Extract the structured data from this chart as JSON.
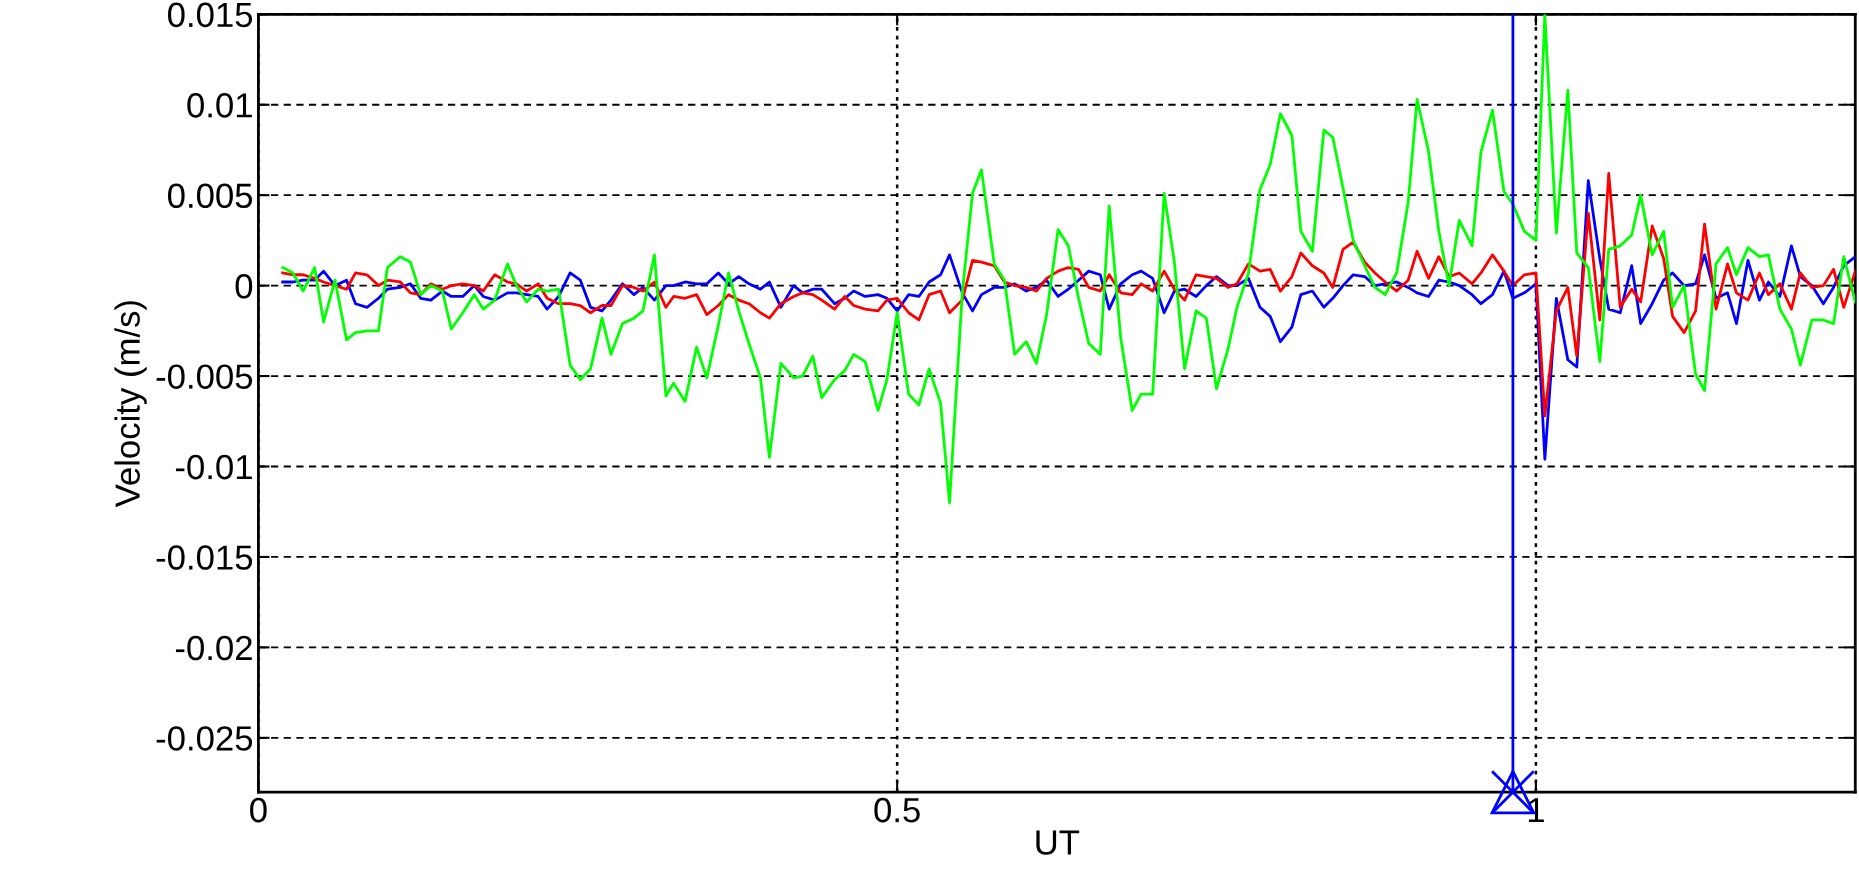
{
  "chart_data": {
    "type": "line",
    "xlabel": "UT",
    "ylabel": "Velocity (m/s)",
    "x": [
      0.019,
      0.027,
      0.035,
      0.044,
      0.051,
      0.06,
      0.069,
      0.076,
      0.085,
      0.094,
      0.101,
      0.111,
      0.119,
      0.127,
      0.135,
      0.144,
      0.151,
      0.16,
      0.169,
      0.176,
      0.185,
      0.195,
      0.202,
      0.21,
      0.219,
      0.226,
      0.235,
      0.244,
      0.252,
      0.26,
      0.269,
      0.276,
      0.285,
      0.294,
      0.301,
      0.31,
      0.319,
      0.325,
      0.334,
      0.343,
      0.351,
      0.36,
      0.368,
      0.376,
      0.384,
      0.393,
      0.4,
      0.409,
      0.419,
      0.426,
      0.434,
      0.441,
      0.451,
      0.459,
      0.466,
      0.475,
      0.485,
      0.492,
      0.5,
      0.509,
      0.517,
      0.525,
      0.534,
      0.541,
      0.551,
      0.559,
      0.566,
      0.576,
      0.584,
      0.592,
      0.601,
      0.609,
      0.617,
      0.626,
      0.634,
      0.642,
      0.65,
      0.659,
      0.666,
      0.675,
      0.684,
      0.691,
      0.7,
      0.709,
      0.717,
      0.725,
      0.734,
      0.742,
      0.75,
      0.759,
      0.766,
      0.775,
      0.784,
      0.792,
      0.8,
      0.809,
      0.816,
      0.825,
      0.834,
      0.841,
      0.849,
      0.857,
      0.866,
      0.874,
      0.882,
      0.891,
      0.9,
      0.907,
      0.916,
      0.924,
      0.932,
      0.94,
      0.95,
      0.957,
      0.966,
      0.975,
      0.982,
      0.991,
      1.0,
      1.007,
      1.016,
      1.025,
      1.032,
      1.041,
      1.05,
      1.057,
      1.066,
      1.075,
      1.082,
      1.091,
      1.1,
      1.107,
      1.116,
      1.125,
      1.132,
      1.141,
      1.15,
      1.157,
      1.166,
      1.175,
      1.182,
      1.191,
      1.2,
      1.207,
      1.216,
      1.225,
      1.233,
      1.241,
      1.25
    ],
    "series": [
      {
        "color": "#0000ff",
        "values": [
          0.0002,
          0.0002,
          0.0003,
          0.0003,
          0.0008,
          0.0,
          0.0003,
          -0.001,
          -0.0012,
          -0.0007,
          -0.0002,
          -0.0001,
          0.0001,
          -0.0007,
          -0.0008,
          -0.0003,
          -0.0006,
          -0.0006,
          0.0,
          -0.0006,
          -0.0008,
          -0.0004,
          -0.0004,
          -0.0005,
          -0.0006,
          -0.0013,
          -0.0006,
          0.0007,
          0.0003,
          -0.0012,
          -0.0014,
          -0.0008,
          0.0001,
          -0.0005,
          -0.0001,
          -0.0008,
          0.0,
          0.0,
          0.0002,
          0.0001,
          0.0001,
          0.0007,
          0.0001,
          0.0005,
          0.0001,
          -0.0002,
          0.0002,
          -0.0012,
          0.0,
          -0.0004,
          -0.0002,
          -0.0002,
          -0.001,
          -0.0007,
          -0.0003,
          -0.0006,
          -0.0005,
          -0.0007,
          -0.0014,
          -0.0005,
          -0.0006,
          0.0002,
          0.0006,
          0.0017,
          -0.0004,
          -0.0014,
          -0.0005,
          -0.0001,
          -0.0001,
          0.0001,
          -0.0003,
          -0.0001,
          0.0003,
          -0.0006,
          -0.0002,
          0.0003,
          0.0008,
          0.0006,
          -0.0013,
          0.0001,
          0.0006,
          0.0008,
          0.0004,
          -0.0015,
          -0.0003,
          -0.0002,
          -0.0006,
          0.0,
          0.0005,
          0.0,
          0.0,
          0.0004,
          -0.0012,
          -0.0017,
          -0.0031,
          -0.0023,
          -0.0005,
          -0.0003,
          -0.0012,
          -0.0007,
          0.0,
          0.0006,
          0.0005,
          0.0,
          0.0001,
          0.0002,
          -0.0001,
          -0.0004,
          -0.0006,
          0.0003,
          0.0002,
          0.0,
          -0.0005,
          -0.001,
          -0.0005,
          0.0008,
          -0.0007,
          -0.0004,
          0.0001,
          -0.0096,
          -0.0007,
          -0.0041,
          -0.0045,
          0.0058,
          0.0015,
          -0.0013,
          -0.0015,
          0.0011,
          -0.0021,
          -0.001,
          0.0003,
          0.0007,
          0.0,
          0.0001,
          0.0017,
          -0.0007,
          -0.0004,
          -0.0021,
          0.0014,
          -0.0008,
          0.0002,
          -0.0006,
          0.0022,
          0.0005,
          0.0,
          -0.001,
          -0.0001,
          0.0011,
          0.0016
        ]
      },
      {
        "color": "#ff0000",
        "values": [
          0.0007,
          0.0006,
          0.0006,
          0.0004,
          0.0002,
          0.0,
          -0.0002,
          0.0007,
          0.0006,
          0.0,
          0.0003,
          0.0002,
          -0.0004,
          -0.0005,
          0.0001,
          -0.0002,
          0.0,
          0.0001,
          0.0,
          -0.0003,
          0.0006,
          0.0002,
          0.0001,
          -0.0003,
          0.0001,
          -0.0007,
          -0.001,
          -0.001,
          -0.0011,
          -0.0015,
          -0.0011,
          -0.0011,
          0.0,
          -0.0001,
          -0.0003,
          0.0002,
          -0.0012,
          -0.0006,
          -0.0007,
          -0.0005,
          -0.0016,
          -0.0011,
          -0.0005,
          -0.0008,
          -0.001,
          -0.0015,
          -0.0018,
          -0.001,
          -0.0006,
          -0.0004,
          -0.0005,
          -0.0008,
          -0.0013,
          -0.0006,
          -0.0011,
          -0.0013,
          -0.0014,
          -0.0008,
          -0.0007,
          -0.0015,
          -0.0019,
          -0.0005,
          -0.0003,
          -0.0015,
          -0.0008,
          0.0014,
          0.0013,
          0.0011,
          0.0002,
          0.0,
          -0.0001,
          -0.0003,
          0.0004,
          0.0008,
          0.001,
          0.0009,
          -0.0001,
          -0.0003,
          0.0006,
          -0.0004,
          -0.0005,
          0.0001,
          -0.0003,
          0.0008,
          -0.0002,
          -0.0008,
          0.0006,
          0.0005,
          0.0004,
          -0.0001,
          0.0001,
          0.0012,
          0.0008,
          0.0009,
          -0.0003,
          0.0005,
          0.0018,
          0.0011,
          0.0007,
          -0.0001,
          0.002,
          0.0024,
          0.0013,
          0.0007,
          0.0002,
          -0.0003,
          0.0003,
          0.0019,
          0.0004,
          0.0016,
          0.0005,
          0.0007,
          0.0001,
          0.0007,
          0.0017,
          0.0008,
          0.0,
          0.0006,
          0.0007,
          -0.0072,
          -0.0014,
          -0.0001,
          -0.0039,
          0.004,
          -0.0019,
          0.0062,
          -0.0012,
          -0.0002,
          -0.0009,
          0.0033,
          0.0015,
          -0.0017,
          -0.0026,
          -0.0014,
          0.0034,
          -0.0013,
          0.0012,
          -0.0004,
          -0.0008,
          0.0007,
          -0.0005,
          0.0001,
          -0.0013,
          0.0007,
          -0.0001,
          0.0,
          0.0009,
          -0.0012,
          0.0008
        ]
      },
      {
        "color": "#00ff00",
        "values": [
          0.001,
          0.0007,
          -0.0003,
          0.001,
          -0.002,
          0.0003,
          -0.003,
          -0.0026,
          -0.0025,
          -0.0025,
          0.001,
          0.0016,
          0.0013,
          -0.0005,
          0.0,
          -0.0003,
          -0.0024,
          -0.0015,
          -0.0005,
          -0.0013,
          -0.0008,
          0.0012,
          0.0,
          -0.0009,
          -0.0002,
          -0.0003,
          -0.0002,
          -0.0044,
          -0.0052,
          -0.0046,
          -0.0018,
          -0.0038,
          -0.0021,
          -0.0018,
          -0.0014,
          0.0017,
          -0.0061,
          -0.0054,
          -0.0064,
          -0.0034,
          -0.0051,
          -0.0022,
          0.0007,
          -0.0014,
          -0.0032,
          -0.0051,
          -0.0095,
          -0.0043,
          -0.0051,
          -0.005,
          -0.0039,
          -0.0062,
          -0.0052,
          -0.0047,
          -0.0038,
          -0.0042,
          -0.0069,
          -0.0052,
          -0.0015,
          -0.006,
          -0.0066,
          -0.0046,
          -0.0065,
          -0.012,
          -0.0004,
          0.0051,
          0.0064,
          0.0012,
          0.0003,
          -0.0038,
          -0.0031,
          -0.0043,
          -0.0016,
          0.0031,
          0.0022,
          -0.0007,
          -0.0032,
          -0.0038,
          0.0044,
          -0.0029,
          -0.0069,
          -0.006,
          -0.006,
          0.0051,
          0.0013,
          -0.0046,
          -0.0014,
          -0.0018,
          -0.0057,
          -0.0035,
          -0.0012,
          0.0007,
          0.0053,
          0.0067,
          0.0095,
          0.0083,
          0.003,
          0.0019,
          0.0086,
          0.0082,
          0.0054,
          0.0025,
          0.0011,
          -0.0001,
          -0.0005,
          0.0007,
          0.0046,
          0.0103,
          0.0074,
          0.003,
          0.0,
          0.0036,
          0.0022,
          0.0074,
          0.0097,
          0.0052,
          0.0045,
          0.003,
          0.0025,
          0.015,
          0.0029,
          0.0108,
          0.0018,
          0.001,
          -0.0042,
          0.002,
          0.0022,
          0.0028,
          0.005,
          0.0017,
          0.003,
          -0.0012,
          0.0,
          -0.0049,
          -0.0058,
          0.0012,
          0.0021,
          0.0006,
          0.0021,
          0.0016,
          0.0017,
          -0.0013,
          -0.0024,
          -0.0044,
          -0.0019,
          -0.0019,
          -0.0021,
          0.0016,
          -0.0009
        ]
      }
    ],
    "xlim": [
      0,
      1.25
    ],
    "ylim": [
      -0.028,
      0.015
    ],
    "xticks": [
      0,
      0.5,
      1
    ],
    "yticks": [
      0.015,
      0.01,
      0.005,
      0,
      {
        "value": -0.005,
        "label": "-0.005"
      },
      {
        "value": -0.01,
        "label": "-0.01"
      },
      {
        "value": -0.015,
        "label": "-0.015"
      },
      {
        "value": -0.02,
        "label": "-0.02"
      },
      {
        "value": -0.025,
        "label": "-0.025"
      }
    ],
    "grid": true,
    "legend": false,
    "marker": "none",
    "line_style": "solid",
    "ref_lines": [
      {
        "axis": "x",
        "value": 0.982,
        "color": "#0000ff"
      }
    ]
  }
}
